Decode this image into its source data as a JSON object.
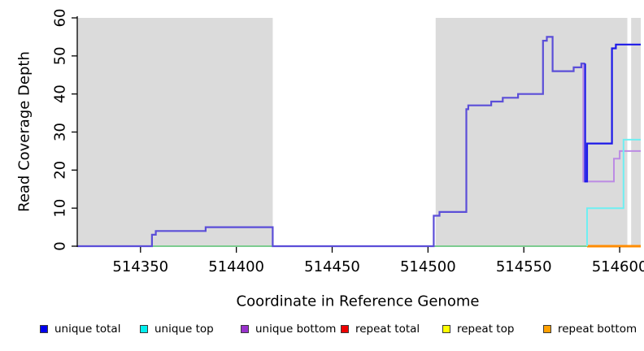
{
  "figure": {
    "xlabel": "Coordinate in Reference Genome",
    "ylabel": "Read Coverage Depth"
  },
  "legend": [
    {
      "label": "unique total",
      "color": "#0000EE"
    },
    {
      "label": "unique top",
      "color": "#00EEEE"
    },
    {
      "label": "unique bottom",
      "color": "#9932CC"
    },
    {
      "label": "repeat total",
      "color": "#EE0000"
    },
    {
      "label": "repeat top",
      "color": "#FFFF00"
    },
    {
      "label": "repeat bottom",
      "color": "#FFA000"
    }
  ],
  "chart_data": {
    "type": "line",
    "step": true,
    "title": "",
    "xlabel": "Coordinate in Reference Genome",
    "ylabel": "Read Coverage Depth",
    "xlim": [
      514317,
      514611
    ],
    "ylim": [
      0,
      60
    ],
    "x_ticks": [
      514350,
      514400,
      514450,
      514500,
      514550,
      514600
    ],
    "y_ticks": [
      0,
      10,
      20,
      30,
      40,
      50,
      60
    ],
    "grid": false,
    "legend_position": "bottom",
    "background_shading": {
      "shaded_color": "#DBDBDB",
      "unshaded_x_ranges": [
        [
          514419,
          514504
        ],
        [
          514604,
          514606
        ]
      ]
    },
    "series": [
      {
        "name": "unique total",
        "color": "#0000EE",
        "steps": [
          [
            514317,
            0
          ],
          [
            514356,
            3
          ],
          [
            514358,
            4
          ],
          [
            514384,
            5
          ],
          [
            514419,
            0
          ],
          [
            514503,
            8
          ],
          [
            514506,
            9
          ],
          [
            514520,
            36
          ],
          [
            514521,
            37
          ],
          [
            514533,
            38
          ],
          [
            514539,
            39
          ],
          [
            514547,
            40
          ],
          [
            514560,
            54
          ],
          [
            514562,
            55
          ],
          [
            514565,
            46
          ],
          [
            514576,
            47
          ],
          [
            514580,
            48
          ],
          [
            514582,
            17
          ],
          [
            514583,
            27
          ],
          [
            514596,
            52
          ],
          [
            514598,
            53
          ]
        ]
      },
      {
        "name": "unique top",
        "color": "#00EEEE",
        "steps": [
          [
            514317,
            0
          ],
          [
            514583,
            10
          ],
          [
            514602,
            28
          ]
        ]
      },
      {
        "name": "unique bottom",
        "color": "#9932CC",
        "steps": [
          [
            514317,
            0
          ],
          [
            514356,
            3
          ],
          [
            514358,
            4
          ],
          [
            514384,
            5
          ],
          [
            514419,
            0
          ],
          [
            514503,
            8
          ],
          [
            514506,
            9
          ],
          [
            514520,
            36
          ],
          [
            514521,
            37
          ],
          [
            514533,
            38
          ],
          [
            514539,
            39
          ],
          [
            514547,
            40
          ],
          [
            514560,
            54
          ],
          [
            514562,
            55
          ],
          [
            514565,
            46
          ],
          [
            514576,
            47
          ],
          [
            514580,
            48
          ],
          [
            514581,
            17
          ],
          [
            514597,
            23
          ],
          [
            514600,
            25
          ]
        ]
      },
      {
        "name": "repeat total",
        "color": "#EE0000",
        "steps": [
          [
            514317,
            0
          ]
        ]
      },
      {
        "name": "repeat top",
        "color": "#FFFF00",
        "steps": [
          [
            514317,
            0
          ]
        ]
      },
      {
        "name": "repeat bottom",
        "color": "#FFA000",
        "steps": [
          [
            514317,
            0
          ]
        ]
      }
    ]
  },
  "render": {
    "shaded_color": "#DBDBDB",
    "axis_color": "#000000",
    "unique_total_left_color": "#5B4ED8",
    "unique_total_right_color": "#1C18E8",
    "unique_total_split": 514582,
    "unique_bottom_color": "#BC8BE4",
    "unique_bottom_draw_from": 514581,
    "unique_top_color": "#6FEFF2",
    "unique_top_draw_from": 514583,
    "baseline_overlap_green": {
      "color": "#7CCB8F",
      "from": 514356,
      "to": 514583
    },
    "baseline_orange": {
      "color": "#FF8C00",
      "from": 514583,
      "to": 514611
    }
  }
}
